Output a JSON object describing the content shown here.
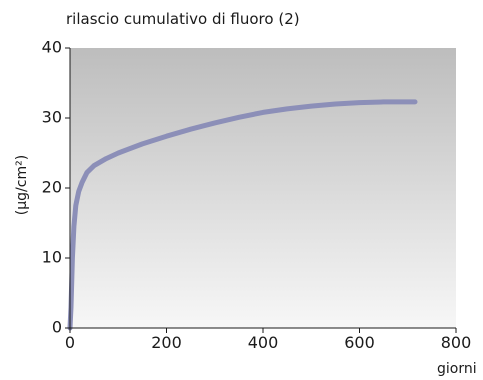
{
  "chart_data": {
    "type": "line",
    "title": "rilascio cumulativo di fluoro (2)",
    "ylabel": "(µg/cm²)",
    "xlabel": "giorni",
    "xlim": [
      0,
      800
    ],
    "ylim": [
      0,
      40
    ],
    "x_ticks": [
      "0",
      "200",
      "400",
      "600",
      "800"
    ],
    "y_ticks": [
      "0",
      "10",
      "20",
      "30",
      "40"
    ],
    "grid": false,
    "line_color": "#8c8fb8",
    "series": [
      {
        "x": [
          0,
          2,
          5,
          8,
          12,
          18,
          25,
          35,
          50,
          75,
          100,
          150,
          200,
          250,
          300,
          350,
          400,
          450,
          500,
          550,
          600,
          650,
          715
        ],
        "y": [
          0,
          3,
          10,
          14.5,
          17.5,
          19.5,
          20.8,
          22.2,
          23.2,
          24.2,
          25.0,
          26.3,
          27.4,
          28.4,
          29.3,
          30.1,
          30.8,
          31.3,
          31.7,
          32.0,
          32.2,
          32.3,
          32.3
        ]
      }
    ]
  }
}
